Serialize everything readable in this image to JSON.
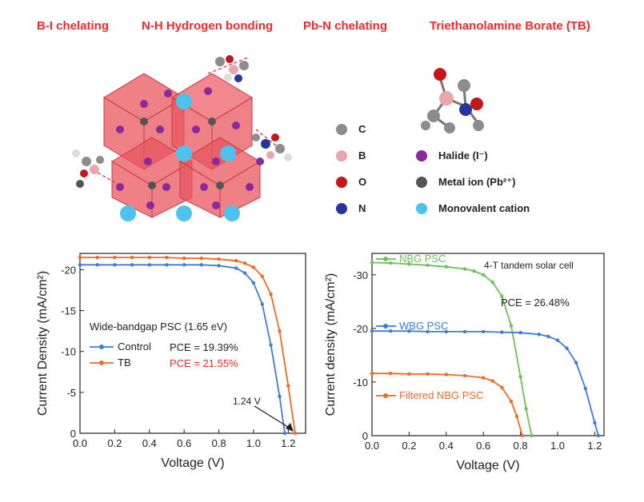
{
  "titles": [
    "B-I chelating",
    "N-H Hydrogen bonding",
    "Pb-N chelating",
    "Triethanolamine Borate (TB)"
  ],
  "legend": {
    "items": [
      {
        "symbol": "C",
        "color": "#8c8c8c"
      },
      {
        "symbol": "B",
        "color": "#e9a7ad"
      },
      {
        "symbol": "O",
        "color": "#c41818"
      },
      {
        "symbol": "N",
        "color": "#25359e"
      }
    ],
    "items2": [
      {
        "label": "Halide (I⁻)",
        "color": "#8b2a9e"
      },
      {
        "label": "Metal ion (Pb²⁺)",
        "color": "#555555"
      },
      {
        "label": "Monovalent cation",
        "color": "#4cc3ee"
      }
    ]
  },
  "chart_data": [
    {
      "type": "line",
      "xlabel": "Voltage (V)",
      "ylabel": "Current Density (mA/cm²)",
      "xlim": [
        0.0,
        1.3
      ],
      "ylim": [
        0,
        -22
      ],
      "xticks": [
        "0.0",
        "0.2",
        "0.4",
        "0.6",
        "0.8",
        "1.0",
        "1.2"
      ],
      "yticks": [
        "0",
        "-5",
        "-10",
        "-15",
        "-20"
      ],
      "inset_title": "Wide-bandgap PSC (1.65 eV)",
      "annotation": "1.24 V",
      "series": [
        {
          "name": "Control",
          "color": "#3d7bd8",
          "pce": "PCE = 19.39%",
          "x": [
            0,
            0.1,
            0.2,
            0.3,
            0.4,
            0.5,
            0.6,
            0.7,
            0.8,
            0.9,
            0.95,
            1.0,
            1.05,
            1.1,
            1.15,
            1.18
          ],
          "y": [
            -20.6,
            -20.6,
            -20.6,
            -20.6,
            -20.6,
            -20.6,
            -20.6,
            -20.6,
            -20.5,
            -20.2,
            -19.6,
            -18.4,
            -15.8,
            -10.8,
            -4.5,
            0
          ]
        },
        {
          "name": "TB",
          "color": "#f06a24",
          "pce": "PCE = 21.55%",
          "x": [
            0,
            0.1,
            0.2,
            0.3,
            0.4,
            0.5,
            0.6,
            0.7,
            0.8,
            0.9,
            0.95,
            1.0,
            1.05,
            1.1,
            1.15,
            1.2,
            1.24
          ],
          "y": [
            -21.5,
            -21.5,
            -21.5,
            -21.5,
            -21.5,
            -21.5,
            -21.4,
            -21.4,
            -21.3,
            -21.1,
            -20.8,
            -20.3,
            -19.2,
            -17.0,
            -12.5,
            -5.8,
            0
          ]
        }
      ]
    },
    {
      "type": "line",
      "xlabel": "Voltage (V)",
      "ylabel": "Current density (mA/cm²)",
      "xlim": [
        0.0,
        1.25
      ],
      "ylim": [
        0,
        -34
      ],
      "xticks": [
        "0.0",
        "0.2",
        "0.4",
        "0.6",
        "0.8",
        "1.0",
        "1.2"
      ],
      "yticks": [
        "0",
        "-10",
        "-20",
        "-30"
      ],
      "inset_title": "4-T tandem solar cell",
      "pce": "PCE = 26.48%",
      "series": [
        {
          "name": "NBG PSC",
          "color": "#6cc05a",
          "x": [
            0,
            0.1,
            0.2,
            0.3,
            0.4,
            0.5,
            0.55,
            0.6,
            0.65,
            0.7,
            0.75,
            0.8,
            0.83,
            0.86
          ],
          "y": [
            -32.3,
            -32.2,
            -32.0,
            -31.8,
            -31.5,
            -31.1,
            -30.7,
            -30.0,
            -28.6,
            -26.0,
            -20.5,
            -11.0,
            -5.0,
            0
          ]
        },
        {
          "name": "WBG PSC",
          "color": "#3d7bd8",
          "x": [
            0,
            0.1,
            0.2,
            0.3,
            0.4,
            0.5,
            0.6,
            0.7,
            0.8,
            0.9,
            0.95,
            1.0,
            1.05,
            1.1,
            1.15,
            1.2,
            1.22
          ],
          "y": [
            -19.5,
            -19.5,
            -19.5,
            -19.4,
            -19.4,
            -19.4,
            -19.4,
            -19.3,
            -19.2,
            -18.9,
            -18.5,
            -17.8,
            -16.3,
            -13.6,
            -8.8,
            -2.4,
            0
          ]
        },
        {
          "name": "Filtered NBG PSC",
          "color": "#f06a24",
          "x": [
            0,
            0.1,
            0.2,
            0.3,
            0.4,
            0.5,
            0.6,
            0.65,
            0.7,
            0.75,
            0.78,
            0.81
          ],
          "y": [
            -11.6,
            -11.6,
            -11.5,
            -11.5,
            -11.4,
            -11.2,
            -10.8,
            -10.2,
            -9.0,
            -6.4,
            -3.6,
            0
          ]
        }
      ]
    }
  ]
}
